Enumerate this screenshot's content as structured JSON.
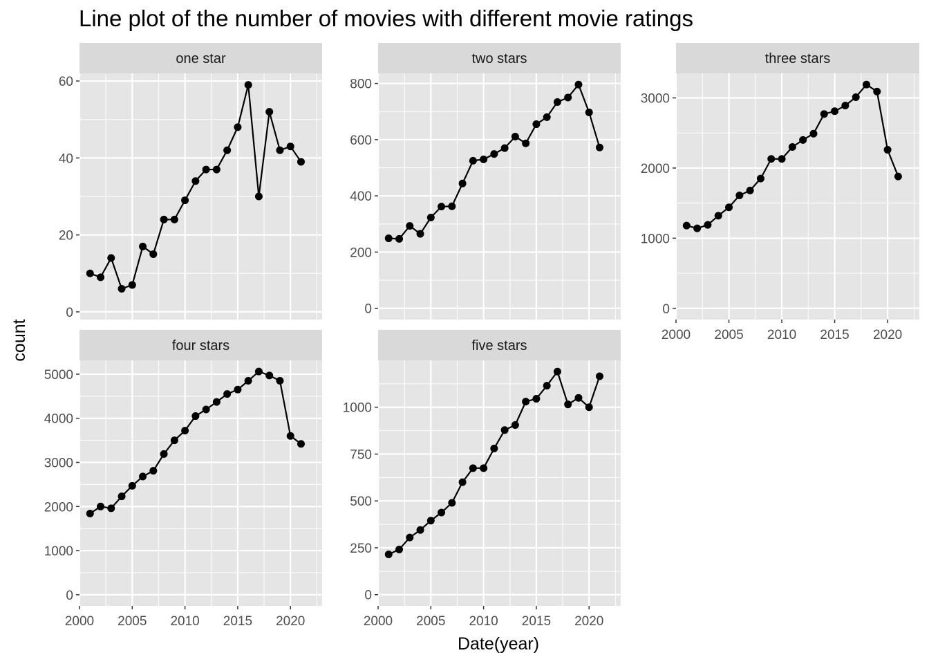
{
  "chart_data": {
    "type": "line",
    "title": "Line plot of the number of movies with different movie ratings",
    "xlabel": "Date(year)",
    "ylabel": "count",
    "grid": true,
    "legend": "none",
    "colors": {
      "panel_background": "#e5e5e5",
      "strip_background": "#d9d9d9",
      "gridline": "#ffffff",
      "line": "#000000",
      "point": "#000000"
    },
    "x_ticks": [
      2000,
      2005,
      2010,
      2015,
      2020
    ],
    "panels": [
      {
        "strip": "one star",
        "x": [
          2001,
          2002,
          2003,
          2004,
          2005,
          2006,
          2007,
          2008,
          2009,
          2010,
          2011,
          2012,
          2013,
          2014,
          2015,
          2016,
          2017,
          2018,
          2019,
          2020,
          2021
        ],
        "values": [
          10,
          9,
          14,
          6,
          7,
          17,
          15,
          24,
          24,
          29,
          34,
          37,
          37,
          42,
          48,
          59,
          30,
          52,
          42,
          43,
          39
        ],
        "xlim": [
          2000,
          2023
        ],
        "ylim": [
          -2,
          62
        ],
        "y_ticks": [
          0,
          20,
          40,
          60
        ]
      },
      {
        "strip": "two stars",
        "x": [
          2001,
          2002,
          2003,
          2004,
          2005,
          2006,
          2007,
          2008,
          2009,
          2010,
          2011,
          2012,
          2013,
          2014,
          2015,
          2016,
          2017,
          2018,
          2019,
          2020,
          2021
        ],
        "values": [
          249,
          247,
          293,
          265,
          323,
          362,
          363,
          444,
          525,
          530,
          549,
          570,
          611,
          587,
          655,
          680,
          734,
          750,
          796,
          697,
          572
        ],
        "xlim": [
          2000,
          2023
        ],
        "ylim": [
          -40,
          836
        ],
        "y_ticks": [
          0,
          200,
          400,
          600,
          800
        ]
      },
      {
        "strip": "three stars",
        "x": [
          2001,
          2002,
          2003,
          2004,
          2005,
          2006,
          2007,
          2008,
          2009,
          2010,
          2011,
          2012,
          2013,
          2014,
          2015,
          2016,
          2017,
          2018,
          2019,
          2020,
          2021
        ],
        "values": [
          1180,
          1140,
          1190,
          1320,
          1440,
          1610,
          1680,
          1850,
          2130,
          2130,
          2300,
          2400,
          2490,
          2770,
          2810,
          2890,
          3010,
          3190,
          3090,
          2260,
          1880
        ],
        "xlim": [
          2000,
          2023
        ],
        "ylim": [
          -160,
          3350
        ],
        "y_ticks": [
          0,
          1000,
          2000,
          3000
        ]
      },
      {
        "strip": "four stars",
        "x": [
          2001,
          2002,
          2003,
          2004,
          2005,
          2006,
          2007,
          2008,
          2009,
          2010,
          2011,
          2012,
          2013,
          2014,
          2015,
          2016,
          2017,
          2018,
          2019,
          2020,
          2021
        ],
        "values": [
          1840,
          2000,
          1960,
          2230,
          2470,
          2680,
          2810,
          3190,
          3500,
          3720,
          4050,
          4200,
          4370,
          4550,
          4650,
          4850,
          5060,
          4970,
          4850,
          3600,
          3420
        ],
        "xlim": [
          2000,
          2023
        ],
        "ylim": [
          -253,
          5313
        ],
        "y_ticks": [
          0,
          1000,
          2000,
          3000,
          4000,
          5000
        ]
      },
      {
        "strip": "five stars",
        "x": [
          2001,
          2002,
          2003,
          2004,
          2005,
          2006,
          2007,
          2008,
          2009,
          2010,
          2011,
          2012,
          2013,
          2014,
          2015,
          2016,
          2017,
          2018,
          2019,
          2020,
          2021
        ],
        "values": [
          215,
          241,
          305,
          345,
          395,
          438,
          490,
          600,
          675,
          675,
          780,
          878,
          905,
          1030,
          1045,
          1115,
          1190,
          1015,
          1050,
          1000,
          1165
        ],
        "xlim": [
          2000,
          2023
        ],
        "ylim": [
          -60,
          1250
        ],
        "y_ticks": [
          0,
          250,
          500,
          750,
          1000
        ]
      }
    ]
  }
}
